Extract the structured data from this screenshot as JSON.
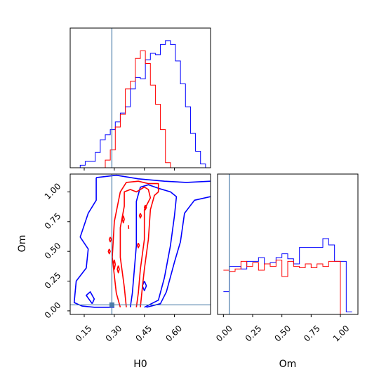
{
  "colors": {
    "red": "#ff0000",
    "blue": "#0000ff",
    "truth": "#4a7ca8"
  },
  "truth": {
    "H0": 0.288,
    "Om": 0.05
  },
  "chart_data": [
    {
      "type": "histogram",
      "panel": "H0 marginal",
      "xlim": [
        0.08,
        0.78
      ],
      "bin_edges": [
        0.08,
        0.105,
        0.13,
        0.155,
        0.18,
        0.205,
        0.23,
        0.255,
        0.28,
        0.305,
        0.33,
        0.355,
        0.38,
        0.405,
        0.43,
        0.455,
        0.48,
        0.505,
        0.53,
        0.555,
        0.58,
        0.605,
        0.63,
        0.655,
        0.68,
        0.705,
        0.73,
        0.755,
        0.78
      ],
      "series": [
        {
          "color": "blue",
          "values": [
            0.0,
            0.0,
            0.02,
            0.05,
            0.05,
            0.12,
            0.22,
            0.26,
            0.3,
            0.36,
            0.43,
            0.48,
            0.62,
            0.71,
            0.7,
            0.85,
            0.9,
            0.89,
            0.97,
            1.0,
            0.97,
            0.84,
            0.66,
            0.48,
            0.27,
            0.13,
            0.03,
            0.0
          ]
        },
        {
          "color": "red",
          "values": [
            0.0,
            0.0,
            0.0,
            0.0,
            0.0,
            0.0,
            0.0,
            0.06,
            0.14,
            0.32,
            0.42,
            0.62,
            0.68,
            0.86,
            0.92,
            0.82,
            0.65,
            0.5,
            0.3,
            0.04,
            0.0,
            0.0,
            0.0,
            0.0,
            0.0,
            0.0,
            0.0,
            0.0
          ]
        }
      ]
    },
    {
      "type": "histogram",
      "panel": "Om marginal",
      "xlabel": "Om",
      "xlim": [
        -0.05,
        1.15
      ],
      "xticks": [
        "0.00",
        "0.25",
        "0.50",
        "0.75",
        "1.00"
      ],
      "xtick_values": [
        0.0,
        0.25,
        0.5,
        0.75,
        1.0
      ],
      "bin_edges": [
        0.0,
        0.05,
        0.1,
        0.15,
        0.2,
        0.25,
        0.3,
        0.35,
        0.4,
        0.45,
        0.5,
        0.55,
        0.6,
        0.65,
        0.7,
        0.75,
        0.8,
        0.85,
        0.9,
        0.95,
        1.0,
        1.05,
        1.1
      ],
      "series": [
        {
          "color": "blue",
          "values": [
            0.18,
            0.38,
            0.38,
            0.36,
            0.42,
            0.42,
            0.45,
            0.4,
            0.41,
            0.45,
            0.48,
            0.44,
            0.4,
            0.53,
            0.53,
            0.53,
            0.53,
            0.6,
            0.55,
            0.42,
            0.42,
            0.02
          ]
        },
        {
          "color": "red",
          "values": [
            0.35,
            0.34,
            0.36,
            0.42,
            0.38,
            0.41,
            0.35,
            0.4,
            0.38,
            0.43,
            0.3,
            0.42,
            0.38,
            0.37,
            0.4,
            0.37,
            0.4,
            0.38,
            0.42,
            0.42,
            0.0,
            0.0
          ]
        }
      ]
    },
    {
      "type": "contour",
      "panel": "H0 vs Om",
      "xlabel": "H0",
      "ylabel": "Om",
      "xlim": [
        0.08,
        0.78
      ],
      "ylim": [
        -0.03,
        1.15
      ],
      "xticks": [
        "0.15",
        "0.30",
        "0.45",
        "0.60"
      ],
      "xtick_values": [
        0.15,
        0.3,
        0.45,
        0.6
      ],
      "yticks": [
        "0.00",
        "0.25",
        "0.50",
        "0.75",
        "1.00"
      ],
      "ytick_values": [
        0.0,
        0.25,
        0.5,
        0.75,
        1.0
      ],
      "series": [
        {
          "color": "blue",
          "contours": [
            [
              [
                0.21,
                1.12
              ],
              [
                0.31,
                1.14
              ],
              [
                0.42,
                1.11
              ],
              [
                0.55,
                1.09
              ],
              [
                0.66,
                1.08
              ],
              [
                0.78,
                1.09
              ]
            ],
            [
              [
                0.78,
                0.96
              ],
              [
                0.7,
                0.93
              ],
              [
                0.65,
                0.82
              ],
              [
                0.63,
                0.58
              ],
              [
                0.6,
                0.41
              ],
              [
                0.56,
                0.16
              ],
              [
                0.53,
                0.06
              ],
              [
                0.46,
                0.03
              ]
            ],
            [
              [
                0.3,
                0.03
              ],
              [
                0.2,
                0.03
              ],
              [
                0.14,
                0.04
              ],
              [
                0.1,
                0.07
              ],
              [
                0.11,
                0.25
              ],
              [
                0.16,
                0.36
              ],
              [
                0.17,
                0.52
              ],
              [
                0.13,
                0.62
              ],
              [
                0.17,
                0.82
              ],
              [
                0.21,
                0.93
              ],
              [
                0.21,
                1.12
              ]
            ],
            [
              [
                0.19,
                0.06
              ],
              [
                0.16,
                0.13
              ],
              [
                0.18,
                0.16
              ],
              [
                0.2,
                0.1
              ],
              [
                0.19,
                0.06
              ]
            ],
            [
              [
                0.45,
                0.03
              ],
              [
                0.52,
                0.09
              ],
              [
                0.55,
                0.28
              ],
              [
                0.58,
                0.55
              ],
              [
                0.6,
                0.8
              ],
              [
                0.61,
                0.96
              ],
              [
                0.58,
                1.0
              ],
              [
                0.52,
                1.03
              ],
              [
                0.47,
                1.06
              ],
              [
                0.43,
                1.04
              ],
              [
                0.41,
                0.92
              ],
              [
                0.41,
                0.55
              ],
              [
                0.39,
                0.15
              ],
              [
                0.38,
                0.03
              ]
            ],
            [
              [
                0.45,
                0.25
              ],
              [
                0.46,
                0.21
              ],
              [
                0.45,
                0.17
              ],
              [
                0.44,
                0.21
              ],
              [
                0.45,
                0.25
              ]
            ]
          ]
        },
        {
          "color": "red",
          "contours": [
            [
              [
                0.33,
                0.03
              ],
              [
                0.31,
                0.15
              ],
              [
                0.29,
                0.45
              ],
              [
                0.3,
                0.75
              ],
              [
                0.33,
                1.0
              ],
              [
                0.36,
                1.08
              ],
              [
                0.42,
                1.09
              ],
              [
                0.47,
                1.07
              ],
              [
                0.52,
                1.07
              ],
              [
                0.52,
                1.0
              ],
              [
                0.5,
                0.97
              ],
              [
                0.48,
                0.85
              ],
              [
                0.47,
                0.6
              ],
              [
                0.45,
                0.35
              ],
              [
                0.44,
                0.2
              ],
              [
                0.43,
                0.03
              ]
            ],
            [
              [
                0.36,
                0.03
              ],
              [
                0.35,
                0.2
              ],
              [
                0.33,
                0.45
              ],
              [
                0.33,
                0.7
              ],
              [
                0.35,
                0.88
              ],
              [
                0.35,
                1.0
              ],
              [
                0.38,
                1.02
              ],
              [
                0.41,
                1.0
              ],
              [
                0.45,
                1.04
              ],
              [
                0.47,
                1.02
              ],
              [
                0.48,
                0.95
              ],
              [
                0.45,
                0.85
              ],
              [
                0.45,
                0.6
              ],
              [
                0.43,
                0.35
              ],
              [
                0.42,
                0.15
              ],
              [
                0.41,
                0.03
              ]
            ],
            [
              [
                0.345,
                0.8
              ],
              [
                0.35,
                0.77
              ],
              [
                0.345,
                0.74
              ],
              [
                0.34,
                0.77
              ],
              [
                0.345,
                0.8
              ]
            ],
            [
              [
                0.42,
                0.57
              ],
              [
                0.425,
                0.55
              ],
              [
                0.42,
                0.53
              ],
              [
                0.415,
                0.55
              ],
              [
                0.42,
                0.57
              ]
            ],
            [
              [
                0.43,
                0.82
              ],
              [
                0.435,
                0.8
              ],
              [
                0.43,
                0.78
              ],
              [
                0.425,
                0.8
              ],
              [
                0.43,
                0.82
              ]
            ],
            [
              [
                0.28,
                0.62
              ],
              [
                0.285,
                0.6
              ],
              [
                0.28,
                0.58
              ],
              [
                0.275,
                0.6
              ],
              [
                0.28,
                0.62
              ]
            ],
            [
              [
                0.275,
                0.52
              ],
              [
                0.28,
                0.5
              ],
              [
                0.275,
                0.48
              ],
              [
                0.27,
                0.5
              ],
              [
                0.275,
                0.52
              ]
            ],
            [
              [
                0.3,
                0.43
              ],
              [
                0.305,
                0.39
              ],
              [
                0.3,
                0.35
              ],
              [
                0.295,
                0.39
              ],
              [
                0.3,
                0.43
              ]
            ],
            [
              [
                0.32,
                0.38
              ],
              [
                0.325,
                0.35
              ],
              [
                0.32,
                0.32
              ],
              [
                0.315,
                0.35
              ],
              [
                0.32,
                0.38
              ]
            ],
            [
              [
                0.37,
                0.72
              ],
              [
                0.372,
                0.69
              ]
            ],
            [
              [
                0.455,
                0.89
              ],
              [
                0.46,
                0.87
              ],
              [
                0.455,
                0.85
              ],
              [
                0.45,
                0.87
              ],
              [
                0.455,
                0.89
              ]
            ]
          ]
        }
      ]
    }
  ]
}
